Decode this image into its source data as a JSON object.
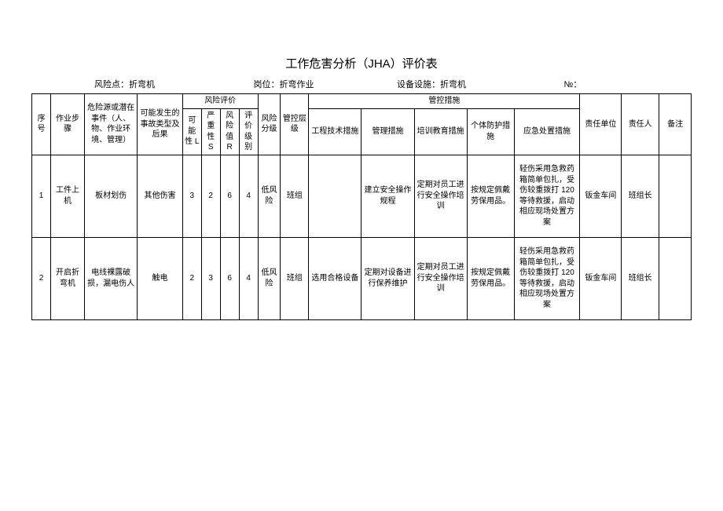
{
  "title": "工作危害分析（JHA）评价表",
  "meta": {
    "risk_point_label": "风险点：折弯机",
    "position_label": "岗位：折弯作业",
    "equipment_label": "设备设施：折弯机",
    "no_label": "№："
  },
  "headers": {
    "seq": "序号",
    "step": "作业步骤",
    "hazard": "危险源或潜在事件（人、物、作业环境、管理）",
    "accident": "可能发生的事故类型及后果",
    "risk_eval": "风险评价",
    "L": "可能性 L",
    "S": "严重性 S",
    "R": "风险值 R",
    "level": "评价级别",
    "fenji": "风险分级",
    "layer": "管控层级",
    "controls": "管控措施",
    "eng": "工程技术措施",
    "mgmt": "管理措施",
    "train": "培训教育措施",
    "ppe": "个体防护措施",
    "emerg": "应急处置措施",
    "unit": "责任单位",
    "resp": "责任人",
    "note": "备注"
  },
  "rows": [
    {
      "seq": "1",
      "step": "工件上机",
      "hazard": "板材划伤",
      "accident": "其他伤害",
      "L": "3",
      "S": "2",
      "R": "6",
      "level": "4",
      "fenji": "低风险",
      "layer": "班组",
      "eng": "",
      "mgmt": "建立安全操作规程",
      "train": "定期对员工进行安全操作培训",
      "ppe": "按规定佩戴劳保用品。",
      "emerg": "轻伤采用急救药箱简单包扎，受伤较重拨打 120 等待救援，启动相应现场处置方案",
      "unit": "钣金车间",
      "resp": "班组长",
      "note": ""
    },
    {
      "seq": "2",
      "step": "开启折弯机",
      "hazard": "电线裸露破损，漏电伤人",
      "accident": "触电",
      "L": "2",
      "S": "3",
      "R": "6",
      "level": "4",
      "fenji": "低风险",
      "layer": "班组",
      "eng": "选用合格设备",
      "mgmt": "定期对设备进行保养维护",
      "train": "定期对员工进行安全操作培训",
      "ppe": "按规定佩戴劳保用品。",
      "emerg": "轻伤采用急救药箱简单包扎，受伤较重拨打 120 等待救援，启动相应现场处置方案",
      "unit": "钣金车间",
      "resp": "班组长",
      "note": ""
    }
  ]
}
